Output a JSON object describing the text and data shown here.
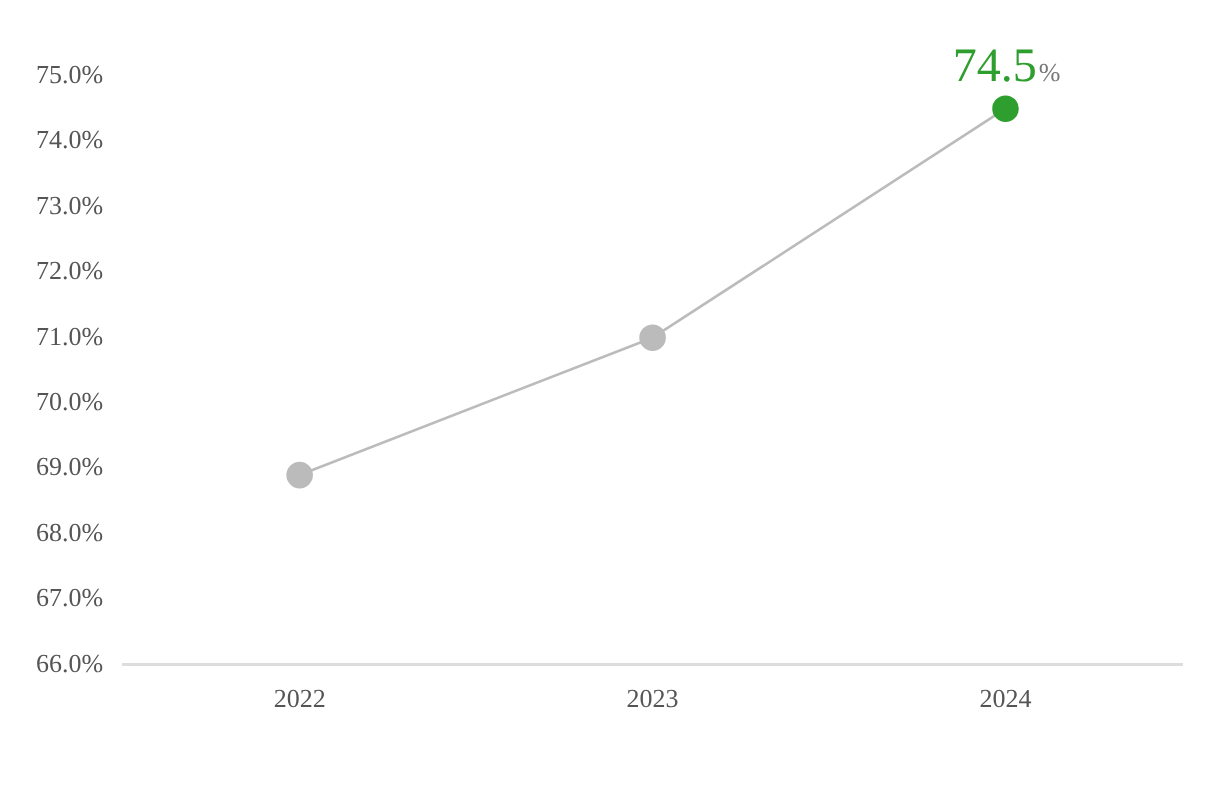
{
  "chart_data": {
    "type": "line",
    "categories": [
      "2022",
      "2023",
      "2024"
    ],
    "series": [
      {
        "color": "#bbbbbb",
        "values": [
          68.9,
          71.0,
          74.5
        ],
        "colors": [
          "#bbbbbb",
          "#bbbbbb",
          "#2e9e2e"
        ],
        "value_labels": [
          null,
          null,
          "74.5%"
        ]
      }
    ],
    "ylim": [
      66,
      75
    ],
    "yticks": [
      {
        "value": 66,
        "label": "66.0%"
      },
      {
        "value": 67,
        "label": "67.0%"
      },
      {
        "value": 68,
        "label": "68.0%"
      },
      {
        "value": 69,
        "label": "69.0%"
      },
      {
        "value": 70,
        "label": "70.0%"
      },
      {
        "value": 71,
        "label": "71.0%"
      },
      {
        "value": 72,
        "label": "72.0%"
      },
      {
        "value": 73,
        "label": "73.0%"
      },
      {
        "value": 74,
        "label": "74.0%"
      },
      {
        "value": 75,
        "label": "75.0%"
      }
    ],
    "grid": false,
    "legend": false,
    "marker": "circle",
    "line_style": "solid"
  }
}
